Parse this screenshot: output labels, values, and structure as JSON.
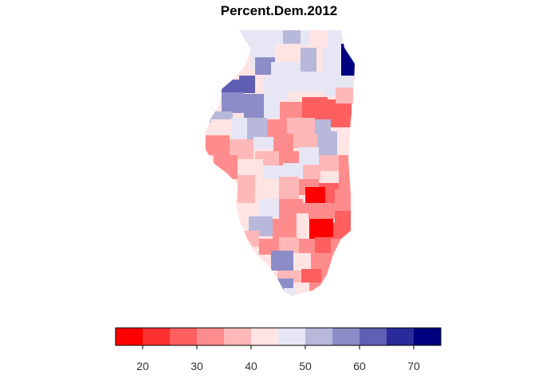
{
  "map": {
    "title": "Percent.Dem.2012",
    "region": "Illinois counties",
    "fill_scheme": "diverging red-white-blue"
  },
  "legend": {
    "range": [
      15,
      75
    ],
    "breaks": [
      15,
      20,
      25,
      30,
      35,
      40,
      45,
      50,
      55,
      60,
      65,
      70,
      75
    ],
    "colors": [
      "#ff0000",
      "#ff3030",
      "#ff5f5f",
      "#ff8c8c",
      "#ffb8b8",
      "#ffe4e4",
      "#e6e6f5",
      "#b8b8db",
      "#8c8cc8",
      "#5f5fb4",
      "#2a2a9a",
      "#000080"
    ],
    "tick_labels": [
      "20",
      "30",
      "40",
      "50",
      "60",
      "70"
    ]
  }
}
